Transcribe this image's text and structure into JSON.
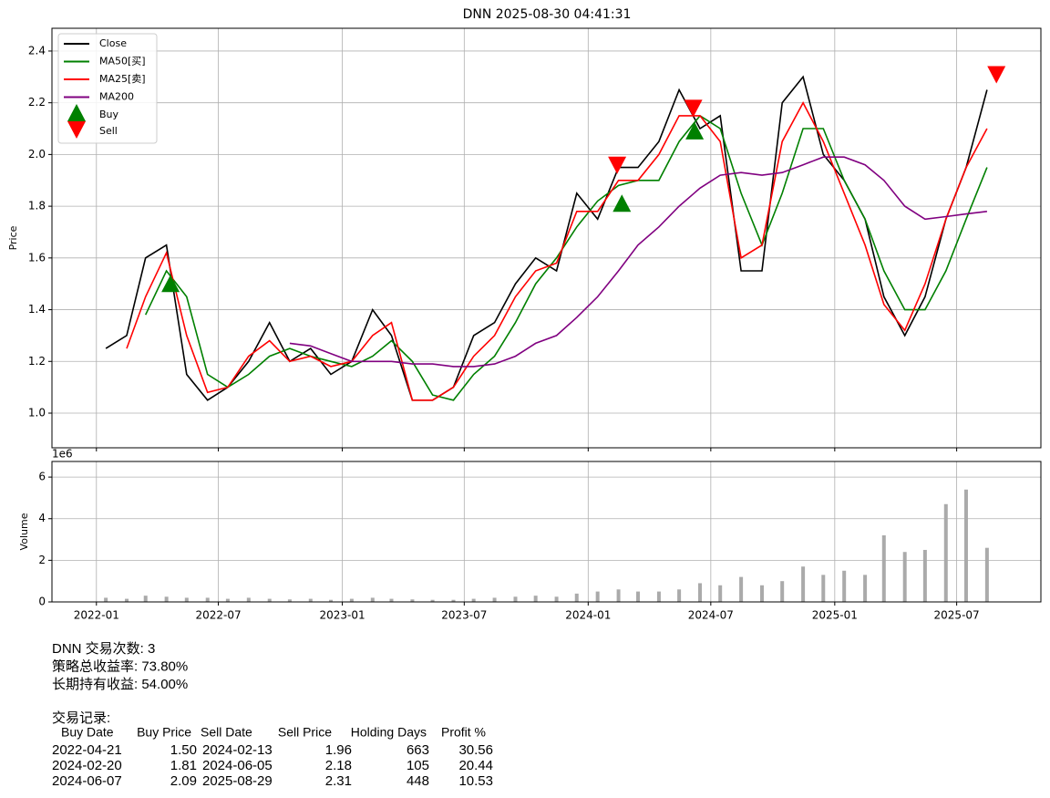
{
  "chart_data": [
    {
      "type": "line",
      "title": "DNN 2025-08-30 04:41:31",
      "ylabel": "Price",
      "x": [
        "2022-01",
        "2022-02",
        "2022-03",
        "2022-04",
        "2022-05",
        "2022-06",
        "2022-07",
        "2022-08",
        "2022-09",
        "2022-10",
        "2022-11",
        "2022-12",
        "2023-01",
        "2023-02",
        "2023-03",
        "2023-04",
        "2023-05",
        "2023-06",
        "2023-07",
        "2023-08",
        "2023-09",
        "2023-10",
        "2023-11",
        "2023-12",
        "2024-01",
        "2024-02",
        "2024-03",
        "2024-04",
        "2024-05",
        "2024-06",
        "2024-07",
        "2024-08",
        "2024-09",
        "2024-10",
        "2024-11",
        "2024-12",
        "2025-01",
        "2025-02",
        "2025-03",
        "2025-04",
        "2025-05",
        "2025-06",
        "2025-07",
        "2025-08"
      ],
      "series": [
        {
          "name": "Close",
          "color": "#000000",
          "values": [
            1.25,
            1.3,
            1.6,
            1.65,
            1.15,
            1.05,
            1.1,
            1.2,
            1.35,
            1.2,
            1.25,
            1.15,
            1.2,
            1.4,
            1.3,
            1.05,
            1.05,
            1.1,
            1.3,
            1.35,
            1.5,
            1.6,
            1.55,
            1.85,
            1.75,
            1.95,
            1.95,
            2.05,
            2.25,
            2.1,
            2.15,
            1.55,
            1.55,
            2.2,
            2.3,
            2.0,
            1.9,
            1.75,
            1.45,
            1.3,
            1.45,
            1.75,
            1.95,
            2.25
          ]
        },
        {
          "name": "MA50[买]",
          "color": "#008000",
          "values": [
            null,
            null,
            1.38,
            1.55,
            1.45,
            1.15,
            1.1,
            1.15,
            1.22,
            1.25,
            1.22,
            1.2,
            1.18,
            1.22,
            1.28,
            1.2,
            1.07,
            1.05,
            1.15,
            1.22,
            1.35,
            1.5,
            1.6,
            1.72,
            1.82,
            1.88,
            1.9,
            1.9,
            2.05,
            2.15,
            2.1,
            1.85,
            1.65,
            1.85,
            2.1,
            2.1,
            1.9,
            1.75,
            1.55,
            1.4,
            1.4,
            1.55,
            1.75,
            1.95
          ]
        },
        {
          "name": "MA25[卖]",
          "color": "#ff0000",
          "values": [
            null,
            1.25,
            1.45,
            1.62,
            1.3,
            1.08,
            1.1,
            1.22,
            1.28,
            1.2,
            1.22,
            1.18,
            1.2,
            1.3,
            1.35,
            1.05,
            1.05,
            1.1,
            1.22,
            1.3,
            1.45,
            1.55,
            1.58,
            1.78,
            1.78,
            1.9,
            1.9,
            2.0,
            2.15,
            2.15,
            2.05,
            1.6,
            1.65,
            2.05,
            2.2,
            2.05,
            1.85,
            1.65,
            1.42,
            1.32,
            1.5,
            1.75,
            1.95,
            2.1
          ]
        },
        {
          "name": "MA200",
          "color": "#800080",
          "values": [
            null,
            null,
            null,
            null,
            null,
            null,
            null,
            null,
            null,
            1.27,
            1.26,
            1.23,
            1.2,
            1.2,
            1.2,
            1.19,
            1.19,
            1.18,
            1.18,
            1.19,
            1.22,
            1.27,
            1.3,
            1.37,
            1.45,
            1.55,
            1.65,
            1.72,
            1.8,
            1.87,
            1.92,
            1.93,
            1.92,
            1.93,
            1.96,
            1.99,
            1.99,
            1.96,
            1.9,
            1.8,
            1.75,
            1.76,
            1.77,
            1.78
          ]
        }
      ],
      "markers": [
        {
          "name": "Buy",
          "color": "#008000",
          "x": [
            "2022-04-21",
            "2024-02-20",
            "2024-06-07"
          ],
          "values": [
            1.5,
            1.81,
            2.09
          ]
        },
        {
          "name": "Sell",
          "color": "#ff0000",
          "x": [
            "2024-02-13",
            "2024-06-05",
            "2025-08-29"
          ],
          "values": [
            1.96,
            2.18,
            2.31
          ]
        }
      ],
      "xlim": [
        "2021-10-27",
        "2025-11-03"
      ],
      "ylim": [
        0.866,
        2.488
      ],
      "yticks": [
        {
          "value": 1.0,
          "label": "1.0"
        },
        {
          "value": 1.2,
          "label": "1.2"
        },
        {
          "value": 1.4,
          "label": "1.4"
        },
        {
          "value": 1.6,
          "label": "1.6"
        },
        {
          "value": 1.8,
          "label": "1.8"
        },
        {
          "value": 2.0,
          "label": "2.0"
        },
        {
          "value": 2.2,
          "label": "2.2"
        },
        {
          "value": 2.4,
          "label": "2.4"
        }
      ],
      "xticks": [
        {
          "value": "2022-01-01",
          "label": "2022-01"
        },
        {
          "value": "2022-07-01",
          "label": "2022-07"
        },
        {
          "value": "2023-01-01",
          "label": "2023-01"
        },
        {
          "value": "2023-07-01",
          "label": "2023-07"
        },
        {
          "value": "2024-01-01",
          "label": "2024-01"
        },
        {
          "value": "2024-07-01",
          "label": "2024-07"
        },
        {
          "value": "2025-01-01",
          "label": "2025-01"
        },
        {
          "value": "2025-07-01",
          "label": "2025-07"
        }
      ],
      "grid": true,
      "legend": "upper left"
    },
    {
      "type": "bar",
      "ylabel": "Volume",
      "offset_label": "1e6",
      "color": "#aaaaaa",
      "x": [
        "2022-01",
        "2022-02",
        "2022-03",
        "2022-04",
        "2022-05",
        "2022-06",
        "2022-07",
        "2022-08",
        "2022-09",
        "2022-10",
        "2022-11",
        "2022-12",
        "2023-01",
        "2023-02",
        "2023-03",
        "2023-04",
        "2023-05",
        "2023-06",
        "2023-07",
        "2023-08",
        "2023-09",
        "2023-10",
        "2023-11",
        "2023-12",
        "2024-01",
        "2024-02",
        "2024-03",
        "2024-04",
        "2024-05",
        "2024-06",
        "2024-07",
        "2024-08",
        "2024-09",
        "2024-10",
        "2024-11",
        "2024-12",
        "2025-01",
        "2025-02",
        "2025-03",
        "2025-04",
        "2025-05",
        "2025-06",
        "2025-07",
        "2025-08"
      ],
      "values": [
        0.2,
        0.15,
        0.3,
        0.25,
        0.2,
        0.2,
        0.15,
        0.2,
        0.15,
        0.12,
        0.15,
        0.1,
        0.15,
        0.2,
        0.15,
        0.12,
        0.1,
        0.1,
        0.15,
        0.2,
        0.25,
        0.3,
        0.25,
        0.4,
        0.5,
        0.6,
        0.5,
        0.5,
        0.6,
        0.9,
        0.8,
        1.2,
        0.8,
        1.0,
        1.7,
        1.3,
        1.5,
        1.3,
        3.2,
        2.4,
        2.5,
        4.7,
        5.4,
        2.6
      ],
      "xlim": [
        "2021-10-27",
        "2025-11-03"
      ],
      "ylim": [
        0,
        6.75
      ],
      "yticks": [
        0,
        2,
        4,
        6
      ],
      "grid": true
    }
  ],
  "report": {
    "lines": [
      "DNN 交易次数: 3",
      "策略总收益率: 73.80%",
      "长期持有收益: 54.00%"
    ],
    "table_title": "交易记录:",
    "columns": [
      "Buy Date",
      "Buy Price",
      "Sell Date",
      "Sell Price",
      "Holding Days",
      "Profit %"
    ],
    "rows": [
      [
        "2022-04-21",
        "1.50",
        "2024-02-13",
        "1.96",
        "663",
        "30.56"
      ],
      [
        "2024-02-20",
        "1.81",
        "2024-06-05",
        "2.18",
        "105",
        "20.44"
      ],
      [
        "2024-06-07",
        "2.09",
        "2025-08-29",
        "2.31",
        "448",
        "10.53"
      ]
    ]
  }
}
